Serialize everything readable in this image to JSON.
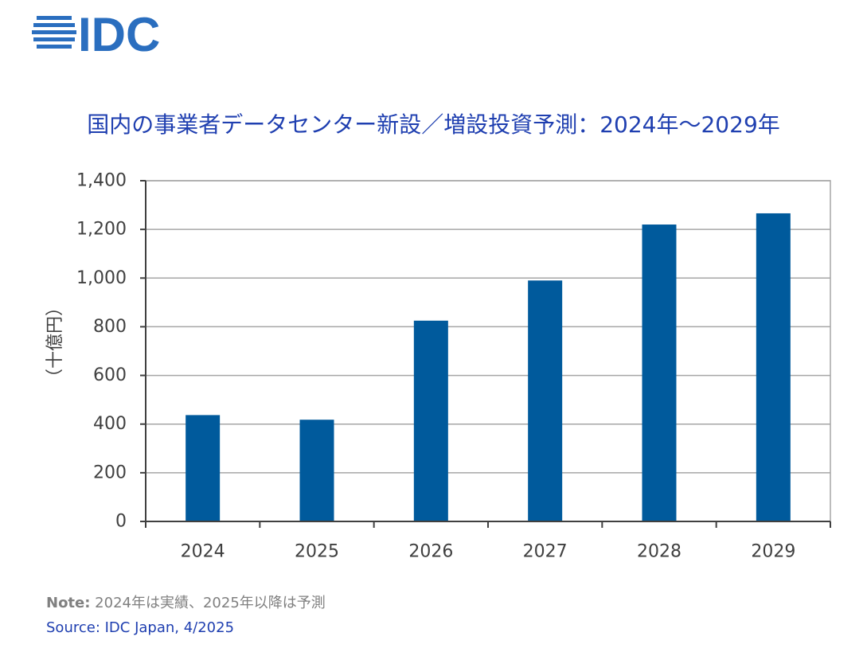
{
  "brand": {
    "logo_text": "IDC",
    "color": "#2a6ebf"
  },
  "title": "国内の事業者データセンター新設／増設投資予測：2024年～2029年",
  "chart_data": {
    "type": "bar",
    "title": "国内の事業者データセンター新設／増設投資予測：2024年～2029年",
    "categories": [
      "2024",
      "2025",
      "2026",
      "2027",
      "2028",
      "2029"
    ],
    "values": [
      437,
      418,
      825,
      990,
      1220,
      1266
    ],
    "ylabel": "（十億円）",
    "xlabel": "",
    "ylim": [
      0,
      1400
    ],
    "yticks": [
      0,
      200,
      400,
      600,
      800,
      1000,
      1200,
      1400
    ],
    "ytick_labels": [
      "0",
      "200",
      "400",
      "600",
      "800",
      "1,000",
      "1,200",
      "1,400"
    ],
    "grid": true,
    "bar_color": "#005a9c"
  },
  "note": {
    "label": "Note:",
    "text": " 2024年は実績、2025年以降は予測"
  },
  "source": "Source: IDC Japan, 4/2025"
}
